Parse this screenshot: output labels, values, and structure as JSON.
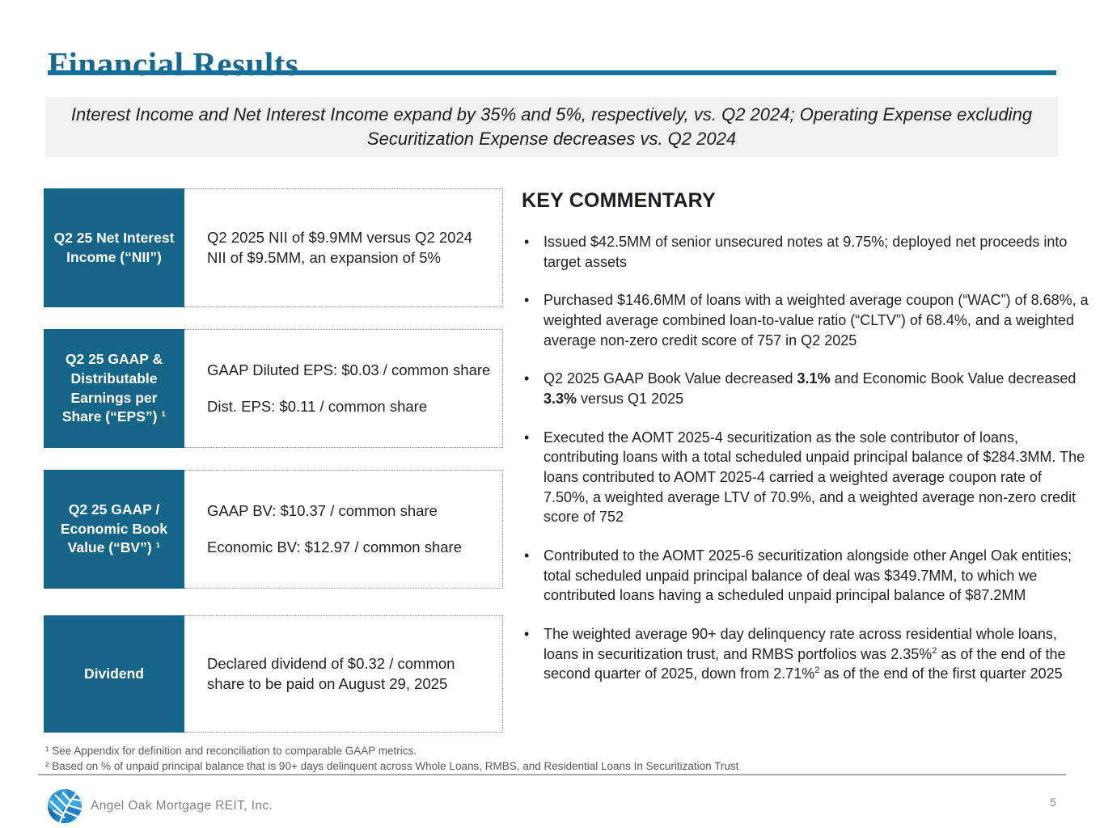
{
  "page": {
    "title": "Financial Results",
    "page_number": "5"
  },
  "subtitle": {
    "text": "Interest Income and Net Interest Income expand by 35% and 5%, respectively, vs. Q2 2024; Operating Expense excluding Securitization Expense decreases vs. Q2 2024"
  },
  "metrics": {
    "rows": [
      {
        "label": "Q2 25 Net Interest Income (“NII”)",
        "paragraphs": [
          "Q2 2025 NII of $9.9MM versus Q2 2024 NII of $9.5MM, an expansion of 5%"
        ]
      },
      {
        "label": "Q2 25 GAAP & Distributable Earnings per Share (“EPS”) ¹",
        "paragraphs": [
          "GAAP Diluted EPS: $0.03 / common share",
          "Dist. EPS: $0.11 / common share"
        ]
      },
      {
        "label": "Q2 25 GAAP / Economic Book Value (“BV”) ¹",
        "paragraphs": [
          "GAAP BV: $10.37 / common share",
          "Economic BV: $12.97 / common share"
        ]
      },
      {
        "label": "Dividend",
        "paragraphs": [
          "Declared dividend of $0.32 / common share to be paid on August 29, 2025"
        ]
      }
    ]
  },
  "commentary": {
    "heading": "KEY COMMENTARY",
    "bullets": [
      [
        {
          "t": "Issued $42.5MM of senior unsecured notes at 9.75%; deployed net proceeds into target assets"
        }
      ],
      [
        {
          "t": "Purchased $146.6MM of loans with a weighted average coupon (“WAC”) of 8.68%, a weighted average combined loan-to-value ratio (“CLTV”) of 68.4%, and a weighted average non-zero credit score of 757 in Q2 2025"
        }
      ],
      [
        {
          "t": "Q2 2025 GAAP Book Value decreased "
        },
        {
          "t": "3.1%",
          "b": true
        },
        {
          "t": " and Economic Book Value decreased "
        },
        {
          "t": "3.3%",
          "b": true
        },
        {
          "t": " versus Q1 2025"
        }
      ],
      [
        {
          "t": "Executed the AOMT 2025-4 securitization as the sole contributor of loans, contributing loans with a total scheduled unpaid principal balance of $284.3MM. The loans contributed to AOMT 2025-4 carried a weighted average coupon rate of 7.50%, a weighted average LTV of 70.9%, and a weighted average non-zero credit score of 752"
        }
      ],
      [
        {
          "t": "Contributed to the AOMT 2025-6 securitization alongside other Angel Oak entities; total scheduled unpaid principal balance of deal was $349.7MM, to which we contributed loans having a scheduled unpaid principal balance of $87.2MM"
        }
      ],
      [
        {
          "t": "The weighted average 90+ day delinquency rate across residential whole loans, loans in securitization trust, and RMBS portfolios was 2.35%"
        },
        {
          "t": "2",
          "sup": true
        },
        {
          "t": " as of the end of the second quarter of 2025, down from 2.71%"
        },
        {
          "t": "2",
          "sup": true
        },
        {
          "t": " as of the end of the first quarter 2025"
        }
      ]
    ]
  },
  "footnotes": [
    "¹ See Appendix for definition and reconciliation to comparable GAAP metrics.",
    "² Based on % of unpaid principal balance that is 90+ days delinquent across Whole Loans, RMBS, and Residential Loans In Securitization Trust"
  ],
  "footer": {
    "company": "Angel Oak Mortgage REIT, Inc."
  },
  "colors": {
    "accent_teal_box": "#156589",
    "title_teal": "#17688f",
    "rule_teal": "#146f9c",
    "subtitle_bg": "#f0f0f0",
    "body_text": "#231f20",
    "footnote_gray": "#5a5a5a",
    "footer_gray": "#828282",
    "logo_light_blue": "#3aa7de",
    "logo_dark_blue": "#2268ae"
  }
}
